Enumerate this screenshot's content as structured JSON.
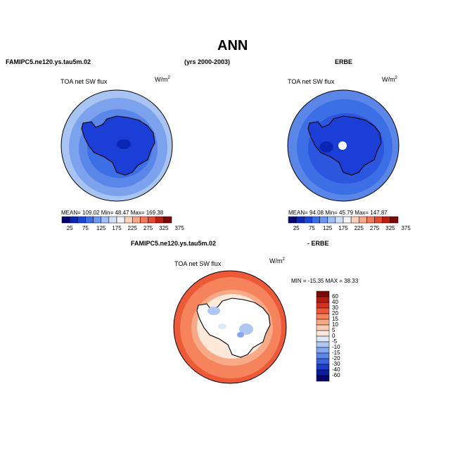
{
  "page": {
    "title": "ANN",
    "case_name": "FAMIPC5.ne120.ys.tau5m.02",
    "years": "(yrs 2000-2003)",
    "obs_name": "ERBE",
    "diff_case": "FAMIPC5.ne120.ys.tau5m.02",
    "diff_obs": "- ERBE"
  },
  "panels": {
    "left": {
      "field_label": "TOA net SW flux",
      "units": "W/m",
      "units_sup": "2",
      "mean_text": "MEAN= 109.02  Min=  48.47  Max= 169.38"
    },
    "right": {
      "field_label": "TOA net SW flux",
      "units": "W/m",
      "units_sup": "2",
      "mean_text": "MEAN=  94.08  Min=  45.79  Max= 147.87"
    },
    "diff": {
      "field_label": "TOA net SW flux",
      "units": "W/m",
      "units_sup": "2",
      "minmax_text": "MIN = -15.35 MAX =  38.33"
    }
  },
  "colorbar_abs": {
    "colors": [
      "#08006e",
      "#0a26b4",
      "#1a46d8",
      "#3c6ee6",
      "#6a96f0",
      "#9ebef5",
      "#cfe0fa",
      "#f2f2f2",
      "#fad2bc",
      "#f7a987",
      "#f0795a",
      "#e04a32",
      "#b81e14",
      "#7a0a08"
    ],
    "labels": [
      "25",
      "75",
      "125",
      "175",
      "225",
      "275",
      "325",
      "375"
    ]
  },
  "colorbar_diff": {
    "colors": [
      "#7a0a08",
      "#b51a10",
      "#d8301e",
      "#ee5a38",
      "#f5835c",
      "#f8a985",
      "#fbcdb3",
      "#fde8da",
      "#dde8f8",
      "#aec8f2",
      "#86a8ec",
      "#5e86e6",
      "#3a62da",
      "#1c3ec6",
      "#0a1e9e",
      "#05006a"
    ],
    "labels": [
      "60",
      "40",
      "30",
      "20",
      "15",
      "10",
      "5",
      "0",
      "-5",
      "-10",
      "-15",
      "-20",
      "-30",
      "-40",
      "-60"
    ]
  }
}
